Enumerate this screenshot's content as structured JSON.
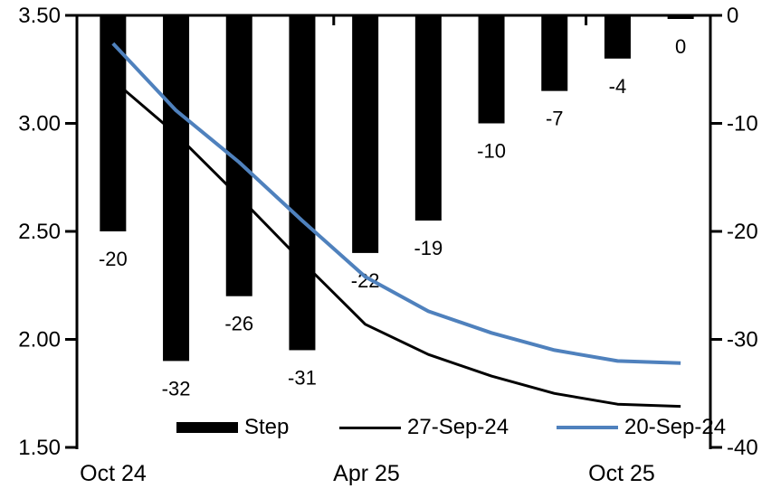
{
  "chart_data": {
    "type": "bar+line combo",
    "n_categories": 10,
    "grid": false,
    "bars": {
      "name": "Step",
      "color": "#000000",
      "axis": "right",
      "unit": "bp",
      "values": [
        -20,
        -32,
        -26,
        -31,
        -22,
        -19,
        -10,
        -7,
        -4,
        0
      ],
      "data_labels": [
        "-20",
        "-32",
        "-26",
        "-31",
        "-22",
        "-19",
        "-10",
        "-7",
        "-4",
        "0"
      ]
    },
    "lines": [
      {
        "name": "27-Sep-24",
        "color": "#000000",
        "stroke_width": 3,
        "axis": "left",
        "values": [
          3.2,
          2.95,
          2.66,
          2.36,
          2.07,
          1.93,
          1.83,
          1.75,
          1.7,
          1.69
        ]
      },
      {
        "name": "20-Sep-24",
        "color": "#4f81bd",
        "stroke_width": 4,
        "axis": "left",
        "values": [
          3.37,
          3.06,
          2.82,
          2.55,
          2.29,
          2.13,
          2.03,
          1.95,
          1.9,
          1.89
        ]
      }
    ],
    "left_axis": {
      "min": 1.5,
      "max": 3.5,
      "tick_labels": [
        "3.50",
        "3.00",
        "2.50",
        "2.00",
        "1.50"
      ]
    },
    "right_axis": {
      "min": -40,
      "max": 0,
      "tick_labels": [
        "0",
        "-10",
        "-20",
        "-30",
        "-40"
      ]
    },
    "x_axis": {
      "labels": [
        {
          "text": "Oct 24",
          "category_index": 0
        },
        {
          "text": "Apr 25",
          "category_index": 4
        },
        {
          "text": "Oct 25",
          "category_index": 8
        }
      ],
      "boundary_tick_indices": [
        4,
        8
      ]
    },
    "legend": [
      {
        "label": "Step",
        "swatch": "bar",
        "color": "#000000"
      },
      {
        "label": "27-Sep-24",
        "swatch": "line",
        "color": "#000000"
      },
      {
        "label": "20-Sep-24",
        "swatch": "line",
        "color": "#4f81bd"
      }
    ]
  }
}
